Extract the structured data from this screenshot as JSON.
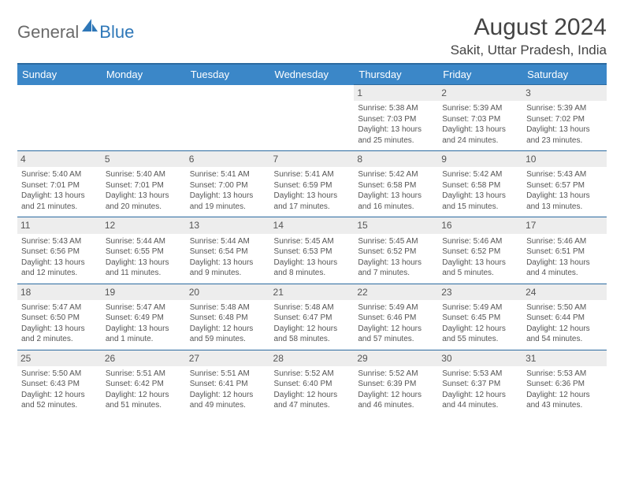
{
  "brand": {
    "general": "General",
    "blue": "Blue"
  },
  "header": {
    "title": "August 2024",
    "location": "Sakit, Uttar Pradesh, India"
  },
  "style": {
    "header_bg": "#3b87c8",
    "header_border": "#2b6aa0",
    "daynum_bg": "#ededed",
    "text_color": "#555555",
    "page_bg": "#ffffff",
    "title_fontsize": 30,
    "location_fontsize": 17,
    "th_fontsize": 13,
    "cell_fontsize": 10
  },
  "daynames": [
    "Sunday",
    "Monday",
    "Tuesday",
    "Wednesday",
    "Thursday",
    "Friday",
    "Saturday"
  ],
  "weeks": [
    [
      null,
      null,
      null,
      null,
      {
        "d": "1",
        "rise": "5:38 AM",
        "set": "7:03 PM",
        "dl": "13 hours and 25 minutes."
      },
      {
        "d": "2",
        "rise": "5:39 AM",
        "set": "7:03 PM",
        "dl": "13 hours and 24 minutes."
      },
      {
        "d": "3",
        "rise": "5:39 AM",
        "set": "7:02 PM",
        "dl": "13 hours and 23 minutes."
      }
    ],
    [
      {
        "d": "4",
        "rise": "5:40 AM",
        "set": "7:01 PM",
        "dl": "13 hours and 21 minutes."
      },
      {
        "d": "5",
        "rise": "5:40 AM",
        "set": "7:01 PM",
        "dl": "13 hours and 20 minutes."
      },
      {
        "d": "6",
        "rise": "5:41 AM",
        "set": "7:00 PM",
        "dl": "13 hours and 19 minutes."
      },
      {
        "d": "7",
        "rise": "5:41 AM",
        "set": "6:59 PM",
        "dl": "13 hours and 17 minutes."
      },
      {
        "d": "8",
        "rise": "5:42 AM",
        "set": "6:58 PM",
        "dl": "13 hours and 16 minutes."
      },
      {
        "d": "9",
        "rise": "5:42 AM",
        "set": "6:58 PM",
        "dl": "13 hours and 15 minutes."
      },
      {
        "d": "10",
        "rise": "5:43 AM",
        "set": "6:57 PM",
        "dl": "13 hours and 13 minutes."
      }
    ],
    [
      {
        "d": "11",
        "rise": "5:43 AM",
        "set": "6:56 PM",
        "dl": "13 hours and 12 minutes."
      },
      {
        "d": "12",
        "rise": "5:44 AM",
        "set": "6:55 PM",
        "dl": "13 hours and 11 minutes."
      },
      {
        "d": "13",
        "rise": "5:44 AM",
        "set": "6:54 PM",
        "dl": "13 hours and 9 minutes."
      },
      {
        "d": "14",
        "rise": "5:45 AM",
        "set": "6:53 PM",
        "dl": "13 hours and 8 minutes."
      },
      {
        "d": "15",
        "rise": "5:45 AM",
        "set": "6:52 PM",
        "dl": "13 hours and 7 minutes."
      },
      {
        "d": "16",
        "rise": "5:46 AM",
        "set": "6:52 PM",
        "dl": "13 hours and 5 minutes."
      },
      {
        "d": "17",
        "rise": "5:46 AM",
        "set": "6:51 PM",
        "dl": "13 hours and 4 minutes."
      }
    ],
    [
      {
        "d": "18",
        "rise": "5:47 AM",
        "set": "6:50 PM",
        "dl": "13 hours and 2 minutes."
      },
      {
        "d": "19",
        "rise": "5:47 AM",
        "set": "6:49 PM",
        "dl": "13 hours and 1 minute."
      },
      {
        "d": "20",
        "rise": "5:48 AM",
        "set": "6:48 PM",
        "dl": "12 hours and 59 minutes."
      },
      {
        "d": "21",
        "rise": "5:48 AM",
        "set": "6:47 PM",
        "dl": "12 hours and 58 minutes."
      },
      {
        "d": "22",
        "rise": "5:49 AM",
        "set": "6:46 PM",
        "dl": "12 hours and 57 minutes."
      },
      {
        "d": "23",
        "rise": "5:49 AM",
        "set": "6:45 PM",
        "dl": "12 hours and 55 minutes."
      },
      {
        "d": "24",
        "rise": "5:50 AM",
        "set": "6:44 PM",
        "dl": "12 hours and 54 minutes."
      }
    ],
    [
      {
        "d": "25",
        "rise": "5:50 AM",
        "set": "6:43 PM",
        "dl": "12 hours and 52 minutes."
      },
      {
        "d": "26",
        "rise": "5:51 AM",
        "set": "6:42 PM",
        "dl": "12 hours and 51 minutes."
      },
      {
        "d": "27",
        "rise": "5:51 AM",
        "set": "6:41 PM",
        "dl": "12 hours and 49 minutes."
      },
      {
        "d": "28",
        "rise": "5:52 AM",
        "set": "6:40 PM",
        "dl": "12 hours and 47 minutes."
      },
      {
        "d": "29",
        "rise": "5:52 AM",
        "set": "6:39 PM",
        "dl": "12 hours and 46 minutes."
      },
      {
        "d": "30",
        "rise": "5:53 AM",
        "set": "6:37 PM",
        "dl": "12 hours and 44 minutes."
      },
      {
        "d": "31",
        "rise": "5:53 AM",
        "set": "6:36 PM",
        "dl": "12 hours and 43 minutes."
      }
    ]
  ],
  "labels": {
    "sunrise": "Sunrise: ",
    "sunset": "Sunset: ",
    "daylight": "Daylight: "
  }
}
